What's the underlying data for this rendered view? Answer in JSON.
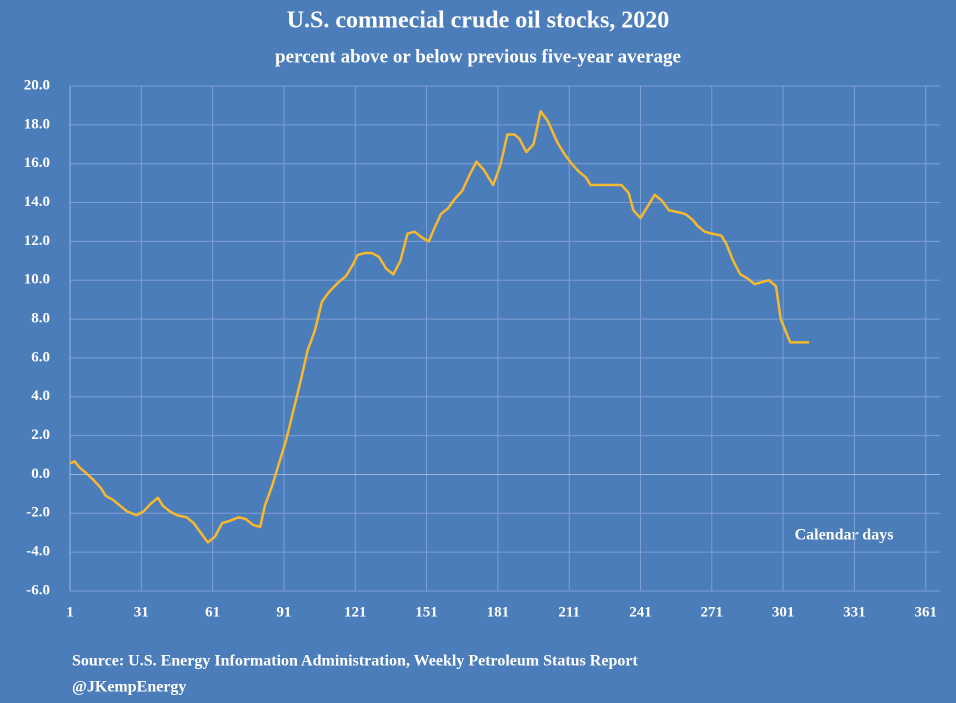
{
  "chart_data": {
    "type": "line",
    "title": "U.S. commecial crude oil stocks, 2020",
    "subtitle": "percent above or below previous five-year average",
    "x_label": "Calendar days",
    "source": "Source: U.S. Energy Information Administration, Weekly Petroleum Status Report",
    "credit": "@JKempEnergy",
    "xlim": [
      1,
      367
    ],
    "xticks": [
      1,
      31,
      61,
      91,
      121,
      151,
      181,
      211,
      241,
      271,
      301,
      331,
      361
    ],
    "ylim": [
      -6,
      20
    ],
    "yticks": [
      {
        "value": -6,
        "label": "-6.0"
      },
      {
        "value": -4,
        "label": "-4.0"
      },
      {
        "value": -2,
        "label": "-2.0"
      },
      {
        "value": 0,
        "label": "0.0"
      },
      {
        "value": 2,
        "label": "2.0"
      },
      {
        "value": 4,
        "label": "4.0"
      },
      {
        "value": 6,
        "label": "6.0"
      },
      {
        "value": 8,
        "label": "8.0"
      },
      {
        "value": 10,
        "label": "10.0"
      },
      {
        "value": 12,
        "label": "12.0"
      },
      {
        "value": 14,
        "label": "14.0"
      },
      {
        "value": 16,
        "label": "16.0"
      },
      {
        "value": 18,
        "label": "18.0"
      },
      {
        "value": 20,
        "label": "20.0"
      }
    ],
    "grid": true,
    "x": [
      1,
      3,
      5,
      8,
      11,
      14,
      16,
      19,
      22,
      25,
      29,
      32,
      35,
      38,
      40,
      43,
      46,
      50,
      53,
      56,
      59,
      62,
      65,
      68,
      72,
      75,
      78,
      81,
      83,
      86,
      89,
      92,
      95,
      98,
      101,
      104,
      107,
      110,
      114,
      117,
      120,
      122,
      125,
      128,
      131,
      134,
      137,
      140,
      143,
      146,
      149,
      152,
      154,
      157,
      160,
      163,
      166,
      169,
      172,
      175,
      179,
      182,
      185,
      188,
      190,
      193,
      196,
      199,
      202,
      206,
      209,
      212,
      215,
      218,
      220,
      223,
      227,
      230,
      233,
      236,
      238,
      241,
      244,
      247,
      250,
      253,
      257,
      260,
      263,
      265,
      268,
      271,
      275,
      277,
      280,
      283,
      286,
      289,
      292,
      295,
      298,
      300,
      304,
      312
    ],
    "series": [
      {
        "color": "#f5b82e",
        "values": [
          0.57,
          0.67,
          0.36,
          0.05,
          -0.3,
          -0.7,
          -1.1,
          -1.3,
          -1.6,
          -1.9,
          -2.1,
          -1.9,
          -1.5,
          -1.2,
          -1.6,
          -1.9,
          -2.1,
          -2.2,
          -2.5,
          -3.0,
          -3.5,
          -3.2,
          -2.5,
          -2.4,
          -2.2,
          -2.3,
          -2.6,
          -2.7,
          -1.6,
          -0.6,
          0.6,
          1.8,
          3.3,
          4.8,
          6.4,
          7.4,
          8.9,
          9.4,
          9.9,
          10.2,
          10.8,
          11.3,
          11.4,
          11.4,
          11.2,
          10.6,
          10.3,
          11.0,
          12.4,
          12.5,
          12.2,
          12.0,
          12.6,
          13.4,
          13.7,
          14.2,
          14.6,
          15.4,
          16.1,
          15.7,
          14.9,
          15.9,
          17.5,
          17.5,
          17.3,
          16.6,
          17.0,
          18.7,
          18.2,
          17.1,
          16.5,
          16.0,
          15.6,
          15.3,
          14.9,
          14.9,
          14.9,
          14.9,
          14.9,
          14.5,
          13.6,
          13.2,
          13.8,
          14.4,
          14.1,
          13.6,
          13.5,
          13.4,
          13.1,
          12.8,
          12.5,
          12.4,
          12.3,
          11.9,
          11.0,
          10.3,
          10.1,
          9.8,
          9.9,
          10.0,
          9.7,
          8.0,
          6.8,
          6.8
        ]
      }
    ]
  }
}
